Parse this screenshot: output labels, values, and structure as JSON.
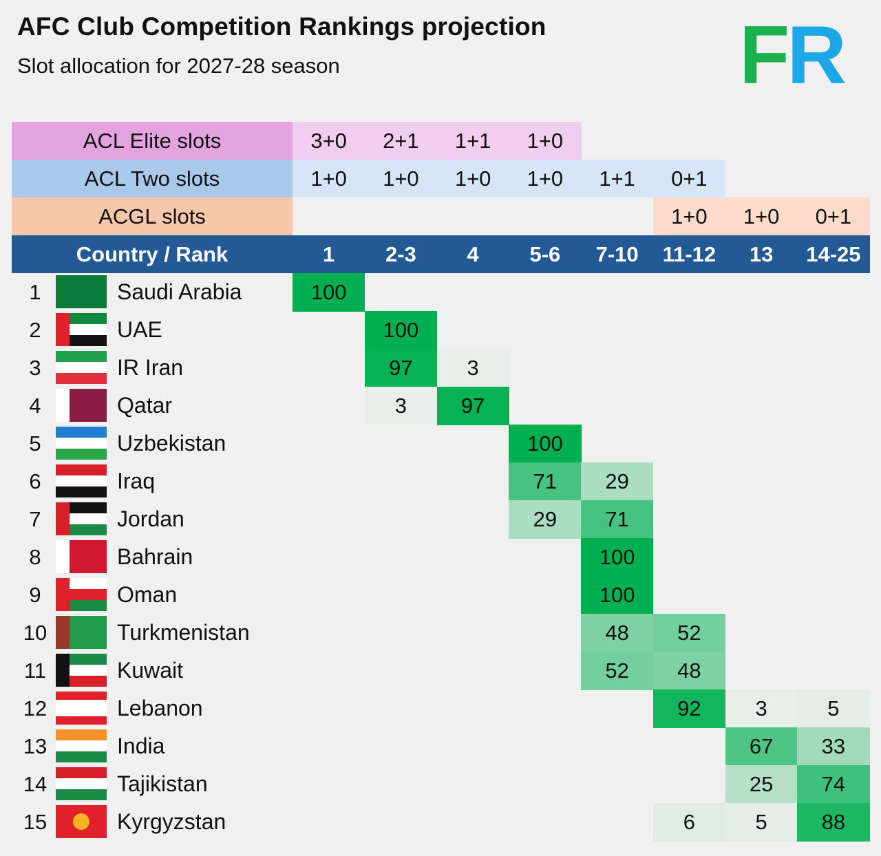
{
  "header": {
    "title": "AFC Club Competition Rankings projection",
    "subtitle": "Slot allocation for 2027-28 season",
    "logo_text": "FR"
  },
  "chart_data": {
    "type": "heatmap",
    "title": "AFC Club Competition Rankings projection",
    "subtitle": "Slot allocation for 2027-28 season",
    "slot_rows": [
      {
        "label": "ACL Elite slots",
        "values": [
          "3+0",
          "2+1",
          "1+1",
          "1+0",
          "",
          "",
          "",
          ""
        ],
        "label_color": "#e2a3de",
        "color": "#f1cdee"
      },
      {
        "label": "ACL Two slots",
        "values": [
          "1+0",
          "1+0",
          "1+0",
          "1+0",
          "1+1",
          "0+1",
          "",
          ""
        ],
        "label_color": "#a9c9ea",
        "color": "#d6e6f6"
      },
      {
        "label": "ACGL slots",
        "values": [
          "",
          "",
          "",
          "",
          "",
          "1+0",
          "1+0",
          "0+1"
        ],
        "label_color": "#f7c6ab",
        "color": "#fbdccb"
      }
    ],
    "column_header": "Country / Rank",
    "columns": [
      "1",
      "2-3",
      "4",
      "5-6",
      "7-10",
      "11-12",
      "13",
      "14-25"
    ],
    "header_color": "#235a96",
    "scale_color_max": "#00b050",
    "scale_color_min": "#f0f0f0",
    "rows": [
      {
        "rank": "1",
        "country": "Saudi Arabia",
        "values": [
          100,
          null,
          null,
          null,
          null,
          null,
          null,
          null
        ],
        "flag": {
          "stripes": [
            "#0b7a3a"
          ]
        }
      },
      {
        "rank": "2",
        "country": "UAE",
        "values": [
          null,
          100,
          null,
          null,
          null,
          null,
          null,
          null
        ],
        "flag": {
          "stripes": [
            "#10893e",
            "#ffffff",
            "#111111"
          ],
          "hoist": "#e0202a"
        }
      },
      {
        "rank": "3",
        "country": "IR Iran",
        "values": [
          null,
          97,
          3,
          null,
          null,
          null,
          null,
          null
        ],
        "flag": {
          "stripes": [
            "#1fa04a",
            "#ffffff",
            "#e0303a"
          ]
        }
      },
      {
        "rank": "4",
        "country": "Qatar",
        "values": [
          null,
          3,
          97,
          null,
          null,
          null,
          null,
          null
        ],
        "flag": {
          "stripes": [
            "#8a1c44"
          ],
          "hoist": "#ffffff"
        }
      },
      {
        "rank": "5",
        "country": "Uzbekistan",
        "values": [
          null,
          null,
          null,
          100,
          null,
          null,
          null,
          null
        ],
        "flag": {
          "stripes": [
            "#1f7fd0",
            "#ffffff",
            "#2aa84a"
          ]
        }
      },
      {
        "rank": "6",
        "country": "Iraq",
        "values": [
          null,
          null,
          null,
          71,
          29,
          null,
          null,
          null
        ],
        "flag": {
          "stripes": [
            "#d8202a",
            "#ffffff",
            "#111111"
          ]
        }
      },
      {
        "rank": "7",
        "country": "Jordan",
        "values": [
          null,
          null,
          null,
          29,
          71,
          null,
          null,
          null
        ],
        "flag": {
          "stripes": [
            "#111111",
            "#ffffff",
            "#1a8a45"
          ],
          "hoist": "#d8202a"
        }
      },
      {
        "rank": "8",
        "country": "Bahrain",
        "values": [
          null,
          null,
          null,
          null,
          100,
          null,
          null,
          null
        ],
        "flag": {
          "stripes": [
            "#d11830"
          ],
          "hoist": "#ffffff"
        }
      },
      {
        "rank": "9",
        "country": "Oman",
        "values": [
          null,
          null,
          null,
          null,
          100,
          null,
          null,
          null
        ],
        "flag": {
          "stripes": [
            "#ffffff",
            "#e0202a",
            "#1a8a45"
          ],
          "hoist": "#e0202a"
        }
      },
      {
        "rank": "10",
        "country": "Turkmenistan",
        "values": [
          null,
          null,
          null,
          null,
          48,
          52,
          null,
          null
        ],
        "flag": {
          "stripes": [
            "#1f9a48"
          ],
          "hoist": "#9a3a2a"
        }
      },
      {
        "rank": "11",
        "country": "Kuwait",
        "values": [
          null,
          null,
          null,
          null,
          52,
          48,
          null,
          null
        ],
        "flag": {
          "stripes": [
            "#1a8a45",
            "#ffffff",
            "#d8202a"
          ],
          "hoist": "#111111"
        }
      },
      {
        "rank": "12",
        "country": "Lebanon",
        "values": [
          null,
          null,
          null,
          null,
          null,
          92,
          3,
          5
        ],
        "flag": {
          "stripes": [
            "#e0202a",
            "#ffffff",
            "#ffffff",
            "#e0202a"
          ]
        }
      },
      {
        "rank": "13",
        "country": "India",
        "values": [
          null,
          null,
          null,
          null,
          null,
          null,
          67,
          33
        ],
        "flag": {
          "stripes": [
            "#f7922a",
            "#ffffff",
            "#1a8a45"
          ]
        }
      },
      {
        "rank": "14",
        "country": "Tajikistan",
        "values": [
          null,
          null,
          null,
          null,
          null,
          null,
          25,
          74
        ],
        "flag": {
          "stripes": [
            "#d8202a",
            "#ffffff",
            "#1a8a45"
          ]
        }
      },
      {
        "rank": "15",
        "country": "Kyrgyzstan",
        "values": [
          null,
          null,
          null,
          null,
          null,
          6,
          5,
          88
        ],
        "flag": {
          "stripes": [
            "#e0202a"
          ],
          "emblem": "#f5b324"
        }
      }
    ]
  }
}
